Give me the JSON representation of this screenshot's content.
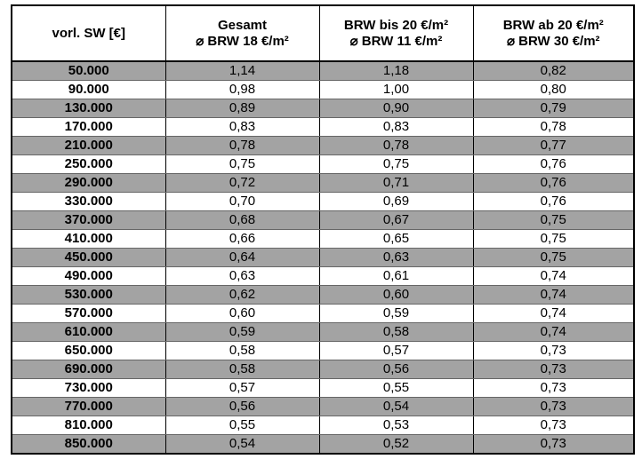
{
  "table": {
    "columns": [
      [
        "vorl. SW [€]"
      ],
      [
        "Gesamt",
        "⌀ BRW 18 €/m²"
      ],
      [
        "BRW bis 20 €/m²",
        "⌀ BRW 11 €/m²"
      ],
      [
        "BRW ab 20 €/m²",
        "⌀ BRW 30 €/m²"
      ]
    ],
    "rows": [
      [
        "50.000",
        "1,14",
        "1,18",
        "0,82"
      ],
      [
        "90.000",
        "0,98",
        "1,00",
        "0,80"
      ],
      [
        "130.000",
        "0,89",
        "0,90",
        "0,79"
      ],
      [
        "170.000",
        "0,83",
        "0,83",
        "0,78"
      ],
      [
        "210.000",
        "0,78",
        "0,78",
        "0,77"
      ],
      [
        "250.000",
        "0,75",
        "0,75",
        "0,76"
      ],
      [
        "290.000",
        "0,72",
        "0,71",
        "0,76"
      ],
      [
        "330.000",
        "0,70",
        "0,69",
        "0,76"
      ],
      [
        "370.000",
        "0,68",
        "0,67",
        "0,75"
      ],
      [
        "410.000",
        "0,66",
        "0,65",
        "0,75"
      ],
      [
        "450.000",
        "0,64",
        "0,63",
        "0,75"
      ],
      [
        "490.000",
        "0,63",
        "0,61",
        "0,74"
      ],
      [
        "530.000",
        "0,62",
        "0,60",
        "0,74"
      ],
      [
        "570.000",
        "0,60",
        "0,59",
        "0,74"
      ],
      [
        "610.000",
        "0,59",
        "0,58",
        "0,74"
      ],
      [
        "650.000",
        "0,58",
        "0,57",
        "0,73"
      ],
      [
        "690.000",
        "0,58",
        "0,56",
        "0,73"
      ],
      [
        "730.000",
        "0,57",
        "0,55",
        "0,73"
      ],
      [
        "770.000",
        "0,56",
        "0,54",
        "0,73"
      ],
      [
        "810.000",
        "0,55",
        "0,53",
        "0,73"
      ],
      [
        "850.000",
        "0,54",
        "0,52",
        "0,73"
      ]
    ]
  }
}
